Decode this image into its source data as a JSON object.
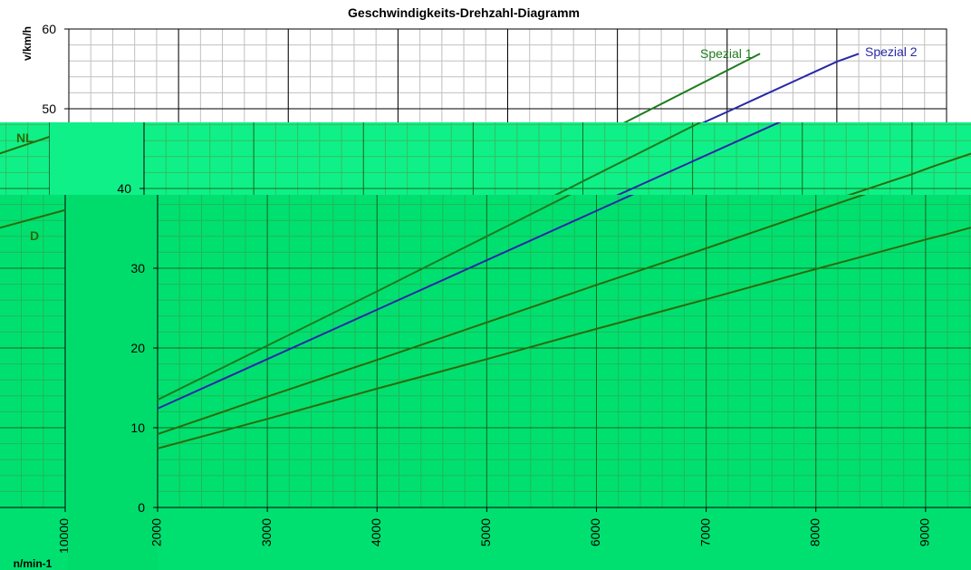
{
  "chart_data": {
    "type": "line",
    "title": "Geschwindigkeits-Drehzahl-Diagramm",
    "y_label": "v/km/h",
    "x_label": "n/min-1",
    "x": [
      2000,
      3000,
      4000,
      5000,
      6000,
      7000,
      8000,
      8300,
      9000,
      9200,
      10000
    ],
    "series": [
      {
        "name": "Spezial 1",
        "color": "#1e7b1e",
        "values": [
          13.5,
          20.3,
          27.1,
          34.0,
          40.9,
          47.8,
          54.8,
          56.9,
          null,
          null,
          null
        ]
      },
      {
        "name": "Spezial 2",
        "color": "#2828a8",
        "values": [
          12.4,
          18.6,
          24.8,
          31.0,
          37.2,
          43.4,
          49.6,
          51.5,
          55.9,
          56.9,
          null
        ]
      },
      {
        "name": "NL",
        "color": "#2d6b0a",
        "values": [
          9.2,
          13.9,
          18.5,
          23.2,
          27.9,
          32.5,
          37.2,
          38.6,
          41.8,
          42.8,
          46.5
        ]
      },
      {
        "name": "D",
        "color": "#2d6b0a",
        "values": [
          7.4,
          11.1,
          14.9,
          18.6,
          22.4,
          26.1,
          29.9,
          31.0,
          33.6,
          34.3,
          37.3
        ]
      }
    ],
    "xlim": [
      2000,
      10000
    ],
    "ylim": [
      0,
      60
    ],
    "xticks": [
      2000,
      3000,
      4000,
      5000,
      6000,
      7000,
      8000,
      9000,
      10000
    ],
    "yticks": [
      0,
      10,
      20,
      30,
      40,
      50,
      60
    ],
    "grid": true
  }
}
